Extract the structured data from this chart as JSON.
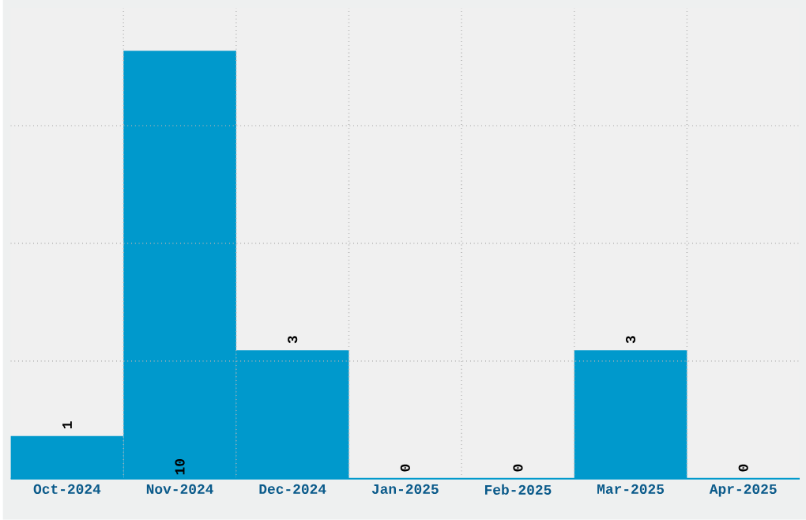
{
  "chart_data": {
    "type": "bar",
    "categories": [
      "Oct-2024",
      "Nov-2024",
      "Dec-2024",
      "Jan-2025",
      "Feb-2025",
      "Mar-2025",
      "Apr-2025"
    ],
    "values": [
      1,
      10,
      3,
      0,
      0,
      3,
      0
    ],
    "color": "#0099cc",
    "ylim": [
      0,
      11
    ],
    "tick_labels": "x",
    "grid": true,
    "data_labels": true
  }
}
